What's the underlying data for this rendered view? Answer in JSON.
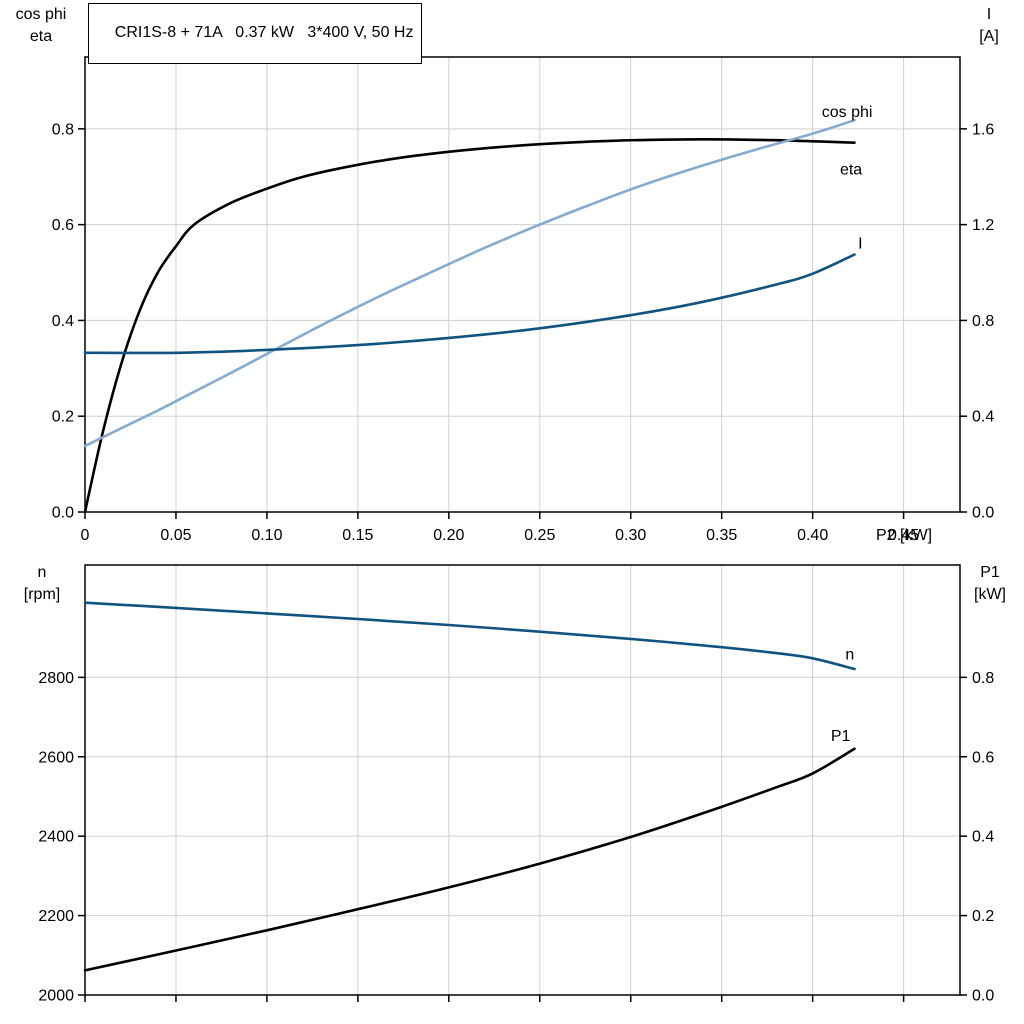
{
  "title": "CRI1S-8 + 71A   0.37 kW   3*400 V, 50 Hz",
  "colors": {
    "black": "#000000",
    "light_blue": "#85abce",
    "dark_blue": "#115380",
    "grid": "#d0d0d0",
    "frame": "#000000"
  },
  "chart_data": [
    {
      "type": "line",
      "title": "CRI1S-8 + 71A   0.37 kW   3*400 V, 50 Hz",
      "xlabel": "P2 [kW]",
      "xlim": [
        0,
        0.481
      ],
      "x_ticks": [
        0,
        0.05,
        0.1,
        0.15,
        0.2,
        0.25,
        0.3,
        0.35,
        0.4,
        0.45
      ],
      "x_tick_labels": [
        "0",
        "0.05",
        "0.10",
        "0.15",
        "0.20",
        "0.25",
        "0.30",
        "0.35",
        "0.40",
        "0.45"
      ],
      "grid": true,
      "left_axis": {
        "label": [
          "cos phi",
          "eta"
        ],
        "lim": [
          0,
          0.95
        ],
        "ticks": [
          0,
          0.2,
          0.4,
          0.6,
          0.8
        ],
        "tick_labels": [
          "0.0",
          "0.2",
          "0.4",
          "0.6",
          "0.8"
        ]
      },
      "right_axis": {
        "label": [
          "I",
          "[A]"
        ],
        "lim": [
          0,
          1.9
        ],
        "ticks": [
          0,
          0.4,
          0.8,
          1.2,
          1.6
        ],
        "tick_labels": [
          "0.0",
          "0.4",
          "0.8",
          "1.2",
          "1.6"
        ]
      },
      "series": [
        {
          "name": "eta",
          "axis": "left",
          "color": "#000000",
          "label_pos": [
            0.415,
            0.705
          ],
          "x": [
            0,
            0.01,
            0.02,
            0.03,
            0.04,
            0.05,
            0.06,
            0.08,
            0.1,
            0.12,
            0.15,
            0.18,
            0.21,
            0.25,
            0.29,
            0.33,
            0.37,
            0.4,
            0.423
          ],
          "y": [
            0,
            0.17,
            0.31,
            0.42,
            0.5,
            0.555,
            0.6,
            0.645,
            0.675,
            0.7,
            0.725,
            0.743,
            0.756,
            0.768,
            0.775,
            0.778,
            0.777,
            0.774,
            0.771
          ]
        },
        {
          "name": "cos phi",
          "axis": "left",
          "color": "#85abce",
          "label_pos": [
            0.405,
            0.825
          ],
          "x": [
            0,
            0.02,
            0.04,
            0.06,
            0.08,
            0.1,
            0.13,
            0.16,
            0.19,
            0.22,
            0.25,
            0.28,
            0.31,
            0.34,
            0.37,
            0.4,
            0.423
          ],
          "y": [
            0.138,
            0.175,
            0.212,
            0.251,
            0.29,
            0.33,
            0.39,
            0.447,
            0.5,
            0.552,
            0.6,
            0.645,
            0.687,
            0.724,
            0.758,
            0.79,
            0.818
          ]
        },
        {
          "name": "I",
          "axis": "right",
          "color": "#115380",
          "label_pos": [
            0.425,
            1.1
          ],
          "x": [
            0,
            0.05,
            0.1,
            0.15,
            0.2,
            0.25,
            0.3,
            0.34,
            0.38,
            0.4,
            0.423
          ],
          "y": [
            0.665,
            0.665,
            0.677,
            0.697,
            0.727,
            0.767,
            0.822,
            0.878,
            0.95,
            0.995,
            1.075
          ]
        }
      ]
    },
    {
      "type": "line",
      "title": "",
      "xlabel": "",
      "xlim": [
        0,
        0.481
      ],
      "x_ticks": [
        0,
        0.05,
        0.1,
        0.15,
        0.2,
        0.25,
        0.3,
        0.35,
        0.4,
        0.45
      ],
      "x_tick_labels": [],
      "grid": true,
      "left_axis": {
        "label": [
          "n",
          "[rpm]"
        ],
        "lim": [
          2000,
          3083
        ],
        "ticks": [
          2000,
          2200,
          2400,
          2600,
          2800
        ],
        "tick_labels": [
          "2000",
          "2200",
          "2400",
          "2600",
          "2800"
        ]
      },
      "right_axis": {
        "label": [
          "P1",
          "[kW]"
        ],
        "lim": [
          0,
          1.083
        ],
        "ticks": [
          0,
          0.2,
          0.4,
          0.6,
          0.8
        ],
        "tick_labels": [
          "0.0",
          "0.2",
          "0.4",
          "0.6",
          "0.8"
        ]
      },
      "series": [
        {
          "name": "n",
          "axis": "left",
          "color": "#115380",
          "label_pos": [
            0.418,
            2845
          ],
          "x": [
            0,
            0.05,
            0.1,
            0.15,
            0.2,
            0.25,
            0.3,
            0.35,
            0.38,
            0.4,
            0.423
          ],
          "y": [
            2988,
            2975,
            2961,
            2947,
            2932,
            2915,
            2897,
            2876,
            2861,
            2848,
            2821
          ]
        },
        {
          "name": "P1",
          "axis": "right",
          "color": "#000000",
          "label_pos": [
            0.41,
            0.64
          ],
          "x": [
            0,
            0.05,
            0.1,
            0.15,
            0.2,
            0.25,
            0.3,
            0.35,
            0.38,
            0.4,
            0.423
          ],
          "y": [
            0.062,
            0.112,
            0.163,
            0.216,
            0.271,
            0.331,
            0.398,
            0.474,
            0.523,
            0.558,
            0.62
          ]
        }
      ]
    }
  ]
}
